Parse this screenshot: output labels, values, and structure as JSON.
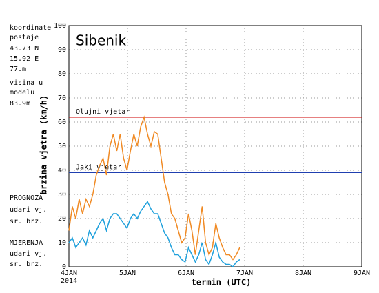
{
  "chart_data": {
    "type": "line",
    "title": "Sibenik",
    "ylabel": "brzina vjetra (km/h)",
    "xlabel": "termin (UTC)",
    "year_label": "2014",
    "station": {
      "line1": "koordinate",
      "line2": "postaje",
      "lat": "43.73 N",
      "lon": "15.92 E",
      "alt": "77.m",
      "model1": "visina u",
      "model2": "modelu",
      "model_alt": "83.9m"
    },
    "forecast_legend": {
      "title": "PROGNOZA",
      "items": [
        {
          "name": "udari vj.",
          "color": "#cc0000"
        },
        {
          "name": "sr. brz.",
          "color": "#1f3fb0"
        }
      ]
    },
    "measured_legend_title": "MJERENJA",
    "thresholds": [
      {
        "label": "Olujni vjetar",
        "value": 62,
        "color": "#cc0000"
      },
      {
        "label": "Jaki vjetar",
        "value": 39,
        "color": "#1f3fb0"
      }
    ],
    "xlim": [
      0,
      120
    ],
    "xticks": [
      {
        "value": 0,
        "label": "4JAN"
      },
      {
        "value": 24,
        "label": "5JAN"
      },
      {
        "value": 48,
        "label": "6JAN"
      },
      {
        "value": 72,
        "label": "7JAN"
      },
      {
        "value": 96,
        "label": "8JAN"
      },
      {
        "value": 120,
        "label": "9JAN"
      }
    ],
    "ylim": [
      0,
      100
    ],
    "yticks": [
      0,
      10,
      20,
      30,
      40,
      50,
      60,
      70,
      80,
      90,
      100
    ],
    "grid": true,
    "x": [
      0,
      1.4,
      2.8,
      4.2,
      5.6,
      7,
      8.4,
      9.8,
      11.2,
      12.6,
      14,
      15.4,
      16.8,
      18.2,
      19.6,
      21,
      22.4,
      23.8,
      25.2,
      26.6,
      28,
      29.4,
      30.8,
      32.2,
      33.6,
      35,
      36.4,
      37.8,
      39.2,
      40.6,
      42,
      43.4,
      44.8,
      46.2,
      47.6,
      49,
      50.4,
      51.8,
      53.2,
      54.6,
      56,
      57.4,
      58.8,
      60.2,
      61.6,
      63,
      64.4,
      65.8,
      67.2,
      68.6,
      70
    ],
    "series": [
      {
        "name": "udari vj.",
        "color": "#f08a24",
        "values": [
          15,
          25,
          20,
          28,
          22,
          28,
          25,
          30,
          38,
          42,
          45,
          38,
          50,
          55,
          48,
          55,
          45,
          40,
          48,
          55,
          50,
          58,
          62,
          55,
          50,
          56,
          55,
          45,
          35,
          30,
          22,
          20,
          15,
          10,
          12,
          22,
          15,
          5,
          15,
          25,
          10,
          5,
          8,
          18,
          12,
          8,
          5,
          5,
          3,
          5,
          8
        ]
      },
      {
        "name": "sr. brz.",
        "color": "#1ea0dc",
        "values": [
          10,
          12,
          8,
          10,
          12,
          9,
          15,
          12,
          15,
          18,
          20,
          15,
          20,
          22,
          22,
          20,
          18,
          16,
          20,
          22,
          20,
          23,
          25,
          27,
          24,
          22,
          22,
          18,
          14,
          12,
          8,
          5,
          5,
          3,
          2,
          8,
          5,
          2,
          5,
          10,
          3,
          1,
          5,
          10,
          4,
          2,
          1,
          1,
          0,
          2,
          3
        ]
      }
    ]
  }
}
